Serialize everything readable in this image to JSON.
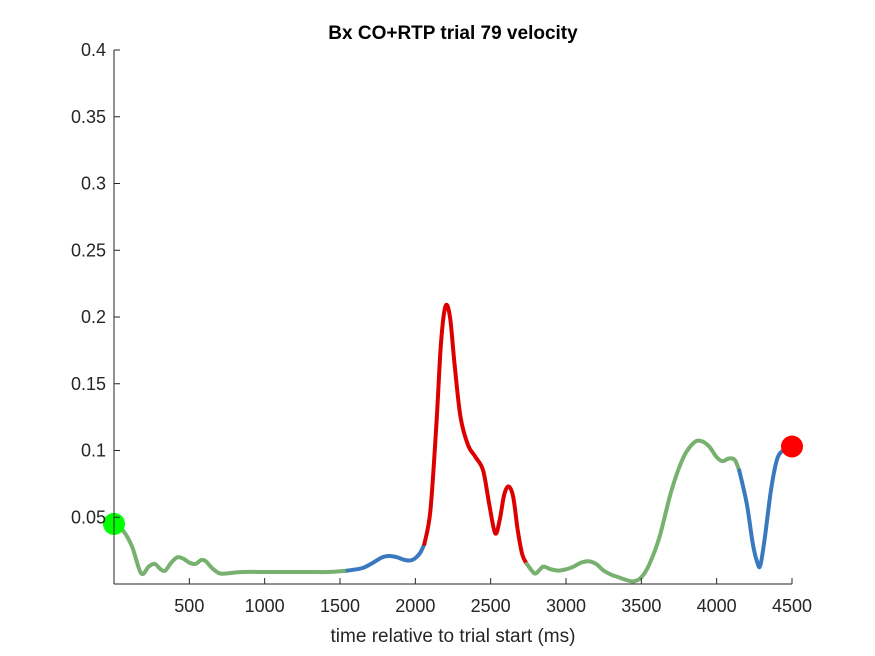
{
  "chart_data": {
    "type": "line",
    "title": "Bx  CO+RTP trial 79 velocity",
    "xlabel": "time relative to trial start (ms)",
    "ylabel": "",
    "xlim": [
      0,
      4500
    ],
    "ylim": [
      0,
      0.4
    ],
    "x_ticks": [
      500,
      1000,
      1500,
      2000,
      2500,
      3000,
      3500,
      4000,
      4500
    ],
    "x_tick_labels": [
      "500",
      "1000",
      "1500",
      "2000",
      "2500",
      "3000",
      "3500",
      "4000",
      "4500"
    ],
    "y_ticks": [
      0.05,
      0.1,
      0.15,
      0.2,
      0.25,
      0.3,
      0.35,
      0.4
    ],
    "y_tick_labels": [
      "0.05",
      "0.1",
      "0.15",
      "0.2",
      "0.25",
      "0.3",
      "0.35",
      "0.4"
    ],
    "grid": false,
    "colors": {
      "green": "#77b06f",
      "blue": "#3a78bf",
      "red": "#dd0000",
      "start_marker": "#00ff00",
      "end_marker": "#ff0000",
      "axis": "#262626"
    },
    "segments": [
      {
        "color": "green",
        "points": [
          [
            0,
            0.045
          ],
          [
            60,
            0.04
          ],
          [
            120,
            0.028
          ],
          [
            180,
            0.008
          ],
          [
            230,
            0.013
          ],
          [
            270,
            0.015
          ],
          [
            310,
            0.011
          ],
          [
            340,
            0.01
          ],
          [
            380,
            0.016
          ],
          [
            420,
            0.02
          ],
          [
            460,
            0.019
          ],
          [
            500,
            0.016
          ],
          [
            540,
            0.015
          ],
          [
            580,
            0.018
          ],
          [
            610,
            0.017
          ],
          [
            650,
            0.012
          ],
          [
            700,
            0.008
          ],
          [
            750,
            0.008
          ],
          [
            850,
            0.009
          ],
          [
            1000,
            0.009
          ],
          [
            1150,
            0.009
          ],
          [
            1300,
            0.009
          ],
          [
            1420,
            0.009
          ],
          [
            1550,
            0.01
          ]
        ]
      },
      {
        "color": "blue",
        "points": [
          [
            1550,
            0.01
          ],
          [
            1650,
            0.012
          ],
          [
            1720,
            0.016
          ],
          [
            1780,
            0.02
          ],
          [
            1830,
            0.021
          ],
          [
            1880,
            0.02
          ],
          [
            1930,
            0.018
          ],
          [
            1980,
            0.018
          ],
          [
            2030,
            0.023
          ],
          [
            2060,
            0.03
          ]
        ]
      },
      {
        "color": "red",
        "points": [
          [
            2060,
            0.03
          ],
          [
            2100,
            0.055
          ],
          [
            2140,
            0.12
          ],
          [
            2170,
            0.18
          ],
          [
            2200,
            0.208
          ],
          [
            2230,
            0.2
          ],
          [
            2260,
            0.165
          ],
          [
            2300,
            0.125
          ],
          [
            2350,
            0.104
          ],
          [
            2400,
            0.095
          ],
          [
            2450,
            0.085
          ],
          [
            2490,
            0.06
          ],
          [
            2530,
            0.038
          ],
          [
            2560,
            0.048
          ],
          [
            2590,
            0.067
          ],
          [
            2620,
            0.073
          ],
          [
            2650,
            0.065
          ],
          [
            2680,
            0.04
          ],
          [
            2710,
            0.022
          ],
          [
            2740,
            0.015
          ]
        ]
      },
      {
        "color": "green",
        "points": [
          [
            2740,
            0.015
          ],
          [
            2790,
            0.008
          ],
          [
            2820,
            0.01
          ],
          [
            2850,
            0.013
          ],
          [
            2900,
            0.011
          ],
          [
            2950,
            0.01
          ],
          [
            3000,
            0.011
          ],
          [
            3050,
            0.013
          ],
          [
            3100,
            0.016
          ],
          [
            3150,
            0.017
          ],
          [
            3200,
            0.015
          ],
          [
            3250,
            0.01
          ],
          [
            3300,
            0.007
          ],
          [
            3350,
            0.005
          ],
          [
            3400,
            0.003
          ],
          [
            3450,
            0.002
          ],
          [
            3500,
            0.005
          ],
          [
            3550,
            0.014
          ],
          [
            3620,
            0.035
          ],
          [
            3700,
            0.07
          ],
          [
            3780,
            0.095
          ],
          [
            3850,
            0.106
          ],
          [
            3900,
            0.107
          ],
          [
            3950,
            0.103
          ],
          [
            4000,
            0.095
          ],
          [
            4040,
            0.092
          ],
          [
            4080,
            0.094
          ],
          [
            4120,
            0.093
          ],
          [
            4150,
            0.085
          ]
        ]
      },
      {
        "color": "blue",
        "points": [
          [
            4150,
            0.085
          ],
          [
            4200,
            0.06
          ],
          [
            4240,
            0.03
          ],
          [
            4270,
            0.016
          ],
          [
            4290,
            0.014
          ],
          [
            4320,
            0.035
          ],
          [
            4360,
            0.07
          ],
          [
            4400,
            0.093
          ],
          [
            4440,
            0.1
          ],
          [
            4500,
            0.103
          ]
        ]
      }
    ],
    "markers": [
      {
        "label": "start",
        "x": 0,
        "y": 0.045,
        "color": "start_marker"
      },
      {
        "label": "end",
        "x": 4500,
        "y": 0.103,
        "color": "end_marker"
      }
    ]
  }
}
